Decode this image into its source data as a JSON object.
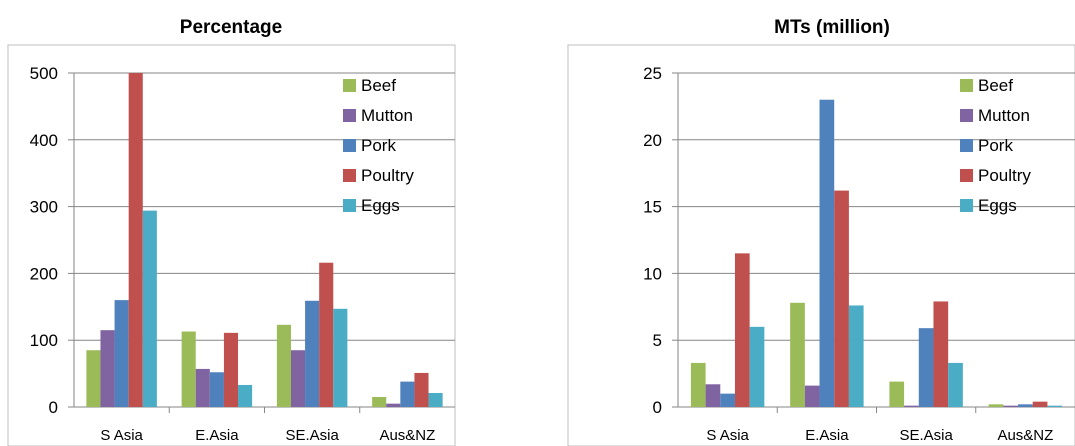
{
  "colors": {
    "Beef": "#9bbb59",
    "Mutton": "#8064a2",
    "Pork": "#4f81bd",
    "Poultry": "#c0504d",
    "Eggs": "#4bacc6"
  },
  "chart_data": [
    {
      "type": "bar",
      "title": "Percentage",
      "categories": [
        "S Asia",
        "E.Asia",
        "SE.Asia",
        "Aus&NZ"
      ],
      "ylim": [
        0,
        500
      ],
      "yticks": [
        0,
        100,
        200,
        300,
        400,
        500
      ],
      "grid": true,
      "legend": "top-right",
      "series": [
        {
          "name": "Beef",
          "values": [
            85,
            113,
            123,
            15
          ]
        },
        {
          "name": "Mutton",
          "values": [
            115,
            57,
            85,
            5
          ]
        },
        {
          "name": "Pork",
          "values": [
            160,
            52,
            159,
            38
          ]
        },
        {
          "name": "Poultry",
          "values": [
            500,
            111,
            216,
            51
          ]
        },
        {
          "name": "Eggs",
          "values": [
            294,
            33,
            147,
            21
          ]
        }
      ]
    },
    {
      "type": "bar",
      "title": "MTs (million)",
      "categories": [
        "S Asia",
        "E.Asia",
        "SE.Asia",
        "Aus&NZ"
      ],
      "ylim": [
        0,
        25
      ],
      "yticks": [
        0,
        5,
        10,
        15,
        20,
        25
      ],
      "grid": true,
      "legend": "top-right",
      "series": [
        {
          "name": "Beef",
          "values": [
            3.3,
            7.8,
            1.9,
            0.2
          ]
        },
        {
          "name": "Mutton",
          "values": [
            1.7,
            1.6,
            0.1,
            0.1
          ]
        },
        {
          "name": "Pork",
          "values": [
            1.0,
            23.0,
            5.9,
            0.2
          ]
        },
        {
          "name": "Poultry",
          "values": [
            11.5,
            16.2,
            7.9,
            0.4
          ]
        },
        {
          "name": "Eggs",
          "values": [
            6.0,
            7.6,
            3.3,
            0.1
          ]
        }
      ]
    }
  ]
}
